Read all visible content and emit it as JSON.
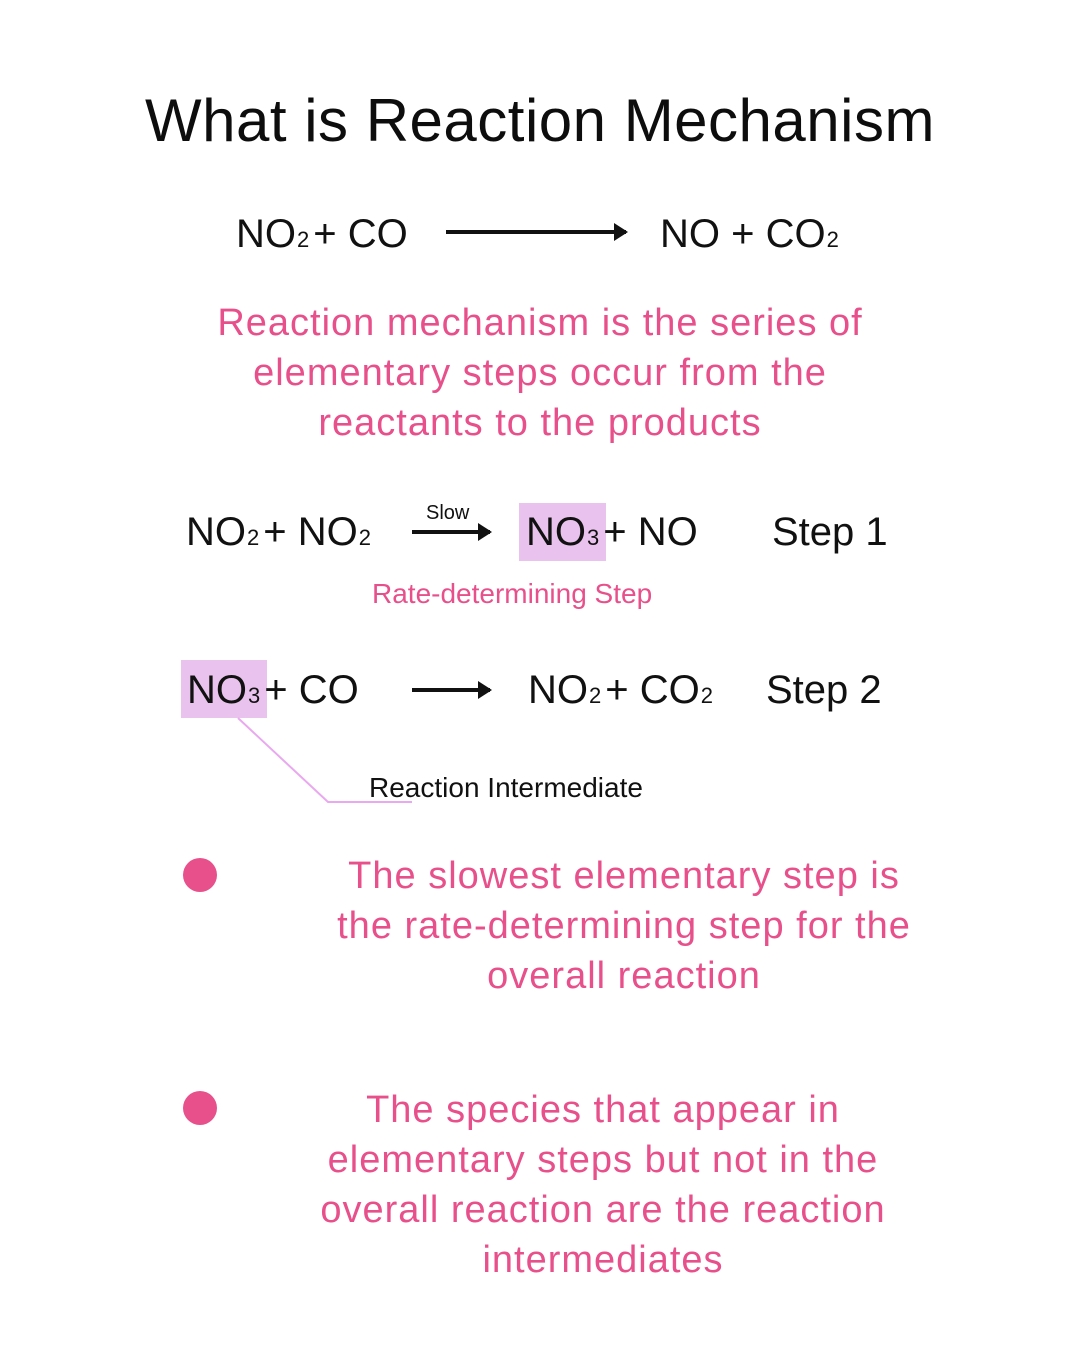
{
  "title": "What is Reaction Mechanism",
  "overall_reaction": {
    "reactant_1": "NO",
    "reactant_1_sub": "2",
    "plus_1": "+ CO",
    "product_1": "NO + CO",
    "product_1_sub": "2"
  },
  "definition": [
    "Reaction mechanism is the series of",
    "elementary steps occur from the",
    "reactants to the products"
  ],
  "step1": {
    "r1": "NO",
    "r1_sub": "2",
    "r2": "+ NO",
    "r2_sub": "2",
    "arrow_label": "Slow",
    "p1": "NO",
    "p1_sub": "3",
    "p2": "+ NO",
    "label": "Step 1",
    "note": "Rate-determining Step"
  },
  "step2": {
    "r1": "NO",
    "r1_sub": "3",
    "r2": "+ CO",
    "p1": "NO",
    "p1_sub": "2",
    "p2": "+ CO",
    "p2_sub": "2",
    "label": "Step 2",
    "note": "Reaction Intermediate"
  },
  "bullets": [
    "The slowest elementary step is the rate-determining step for the overall reaction",
    "The species that appear in elementary steps but not in the overall reaction are the reaction intermediates"
  ],
  "colors": {
    "accent": "#e8508b",
    "highlight": "#e9c3ee",
    "text": "#111111",
    "background": "#ffffff"
  }
}
